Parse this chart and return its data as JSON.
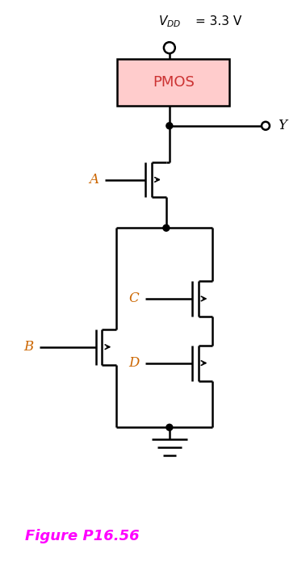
{
  "title": "Figure P16.56",
  "title_color": "#FF00FF",
  "vdd_label_v": "$V_{DD}$",
  "vdd_label_eq": " = 3.3 V",
  "pmos_facecolor": "#FFCCCC",
  "pmos_edgecolor": "#000000",
  "pmos_label": "PMOS",
  "pmos_label_color": "#CC3333",
  "output_label": "Y",
  "label_color": "#CC6600",
  "background_color": "#ffffff"
}
